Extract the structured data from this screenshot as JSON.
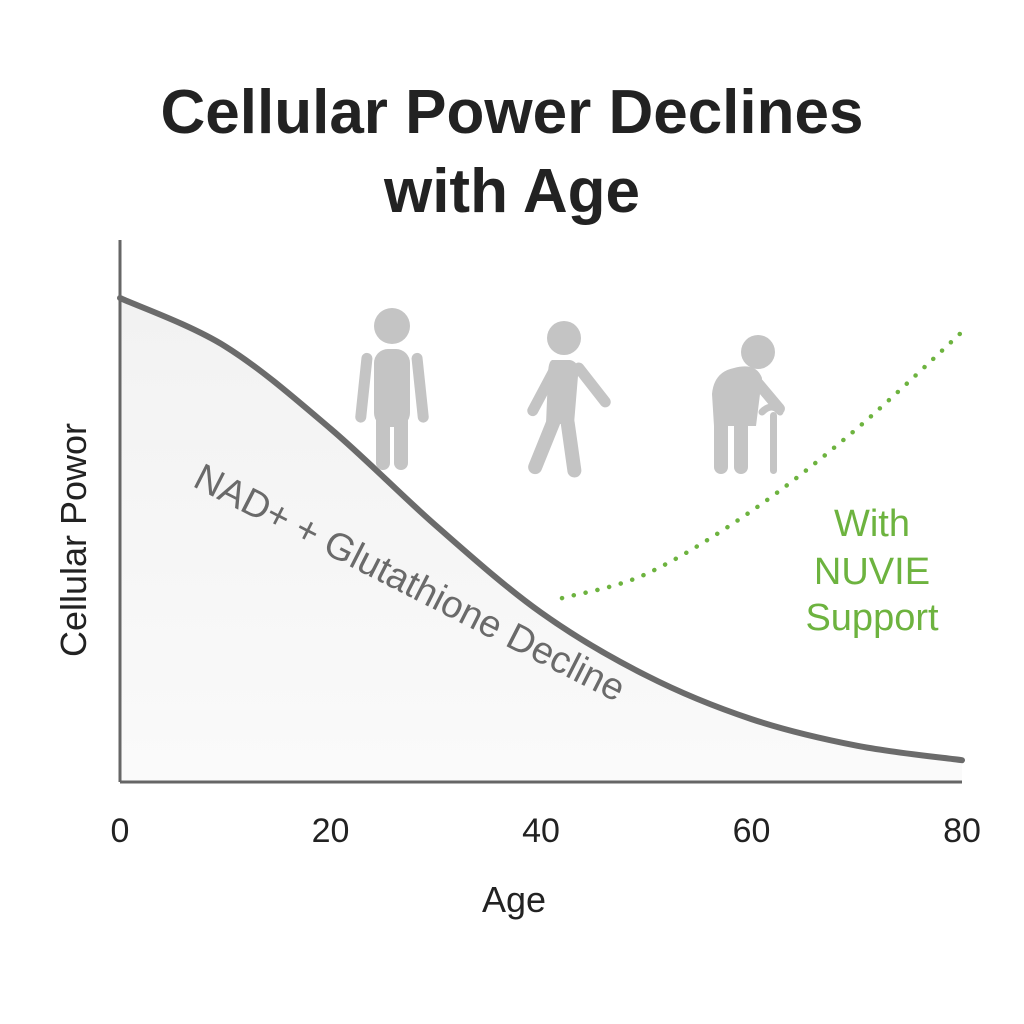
{
  "chart_data": {
    "type": "line",
    "title": [
      "Cellular Power Declines",
      "with Age"
    ],
    "xlabel": "Age",
    "ylabel": "Cellular Powor",
    "xlim": [
      0,
      80
    ],
    "ylim": [
      0,
      100
    ],
    "x_ticks": [
      "0",
      "20",
      "40",
      "60",
      "80"
    ],
    "grid": false,
    "series": [
      {
        "key": "decline",
        "x": [
          0,
          10,
          20,
          30,
          40,
          50,
          60,
          70,
          80
        ],
        "y": [
          100,
          90,
          73,
          53,
          35,
          22,
          13,
          7.5,
          4.5
        ],
        "color": "#6b6b6b",
        "style": "solid",
        "fill_under": true
      },
      {
        "key": "support",
        "x": [
          42,
          50,
          60,
          70,
          80
        ],
        "y": [
          38,
          43,
          56,
          73,
          93
        ],
        "color": "#6db33f",
        "style": "dotted"
      }
    ],
    "annotations": [
      {
        "key": "decline",
        "text": "NAD+ + Glutathione Decline",
        "color": "#6a6a6a"
      },
      {
        "key": "support",
        "lines": [
          "With",
          "NUVIE",
          "Support"
        ],
        "color": "#6db33f"
      }
    ],
    "figures": [
      {
        "name": "adult-standing-figure-icon",
        "at_age": 26.5
      },
      {
        "name": "walking-figure-icon",
        "at_age": 43.5
      },
      {
        "name": "elderly-with-cane-figure-icon",
        "at_age": 62.5
      }
    ]
  }
}
